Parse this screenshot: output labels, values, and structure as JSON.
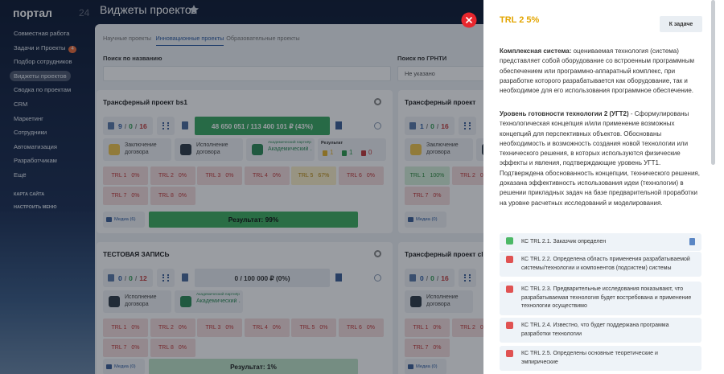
{
  "sidebar": {
    "logo": "портал",
    "logo_suffix": "24",
    "menu": [
      {
        "text": "Совместная работа"
      },
      {
        "text": "Задачи и Проекты",
        "badge": "4"
      },
      {
        "text": "Подбор сотрудников"
      },
      {
        "text": "Виджеты проектов",
        "active": true
      },
      {
        "text": "Сводка по проектам"
      },
      {
        "text": "CRM"
      },
      {
        "text": "Маркетинг"
      },
      {
        "text": "Сотрудники"
      },
      {
        "text": "Автоматизация"
      },
      {
        "text": "Разработчикам"
      },
      {
        "text": "Ещё"
      }
    ],
    "extra": [
      "КАРТА САЙТА",
      "НАСТРОИТЬ МЕНЮ"
    ]
  },
  "page": {
    "title": "Виджеты проектов",
    "tabs": [
      {
        "text": "Научные проекты"
      },
      {
        "text": "Инновационные проекты",
        "active": true
      },
      {
        "text": "Образовательные проекты"
      }
    ],
    "filters": [
      {
        "label": "Поиск по названию"
      },
      {
        "label": "Поиск по ГРНТИ",
        "value": "Не указано"
      }
    ]
  },
  "cards": [
    {
      "title": "Трансферный проект bs1",
      "counts": [
        "9",
        "/",
        "0",
        "/",
        "16"
      ],
      "budget": {
        "text": "48 650 051 / 113 400 101 ₽ (43%)",
        "color": "#3aa861"
      },
      "items": [
        {
          "text": "Заключение договора",
          "icon_color": "#f0c44c"
        },
        {
          "text": "Исполнение договора",
          "icon_color": "#2f3b48"
        },
        {
          "caption": "Академический партнёр",
          "text": "Академический ...",
          "icon_color": "#2e8b57"
        },
        {
          "caption": "Результат",
          "values": [
            "1",
            "1",
            "0"
          ]
        }
      ],
      "trl": [
        [
          {
            "label": "TRL 1",
            "value": "0%"
          },
          {
            "label": "TRL 2",
            "value": "0%"
          },
          {
            "label": "TRL 3",
            "value": "0%"
          },
          {
            "label": "TRL 4",
            "value": "0%"
          },
          {
            "label": "TRL 5",
            "value": "67%",
            "color": "#fbefc9"
          },
          {
            "label": "TRL 6",
            "value": "0%"
          }
        ],
        [
          {
            "label": "TRL 7",
            "value": "0%"
          },
          {
            "label": "TRL 8",
            "value": "0%"
          }
        ]
      ],
      "media": "Медиа (6)",
      "result": {
        "text": "Результат: 99%",
        "color": "#3fae5f"
      }
    },
    {
      "title": "Трансферный проект",
      "counts": [
        "1",
        "/",
        "0",
        "/",
        "16"
      ],
      "items": [
        {
          "text": "Заключение договора",
          "icon_color": "#f0c44c"
        },
        {
          "text": "Исполнение договора",
          "icon_color": "#2f3b48"
        }
      ],
      "trl": [
        [
          {
            "label": "TRL 1",
            "value": "100%",
            "color": "#d6efd9"
          },
          {
            "label": "TRL 2",
            "value": "0%"
          }
        ],
        [
          {
            "label": "TRL 7",
            "value": "0%"
          }
        ]
      ],
      "media": "Медиа (0)"
    },
    {
      "title": "ТЕСТОВАЯ ЗАПИСЬ",
      "counts": [
        "0",
        "/",
        "0",
        "/",
        "12"
      ],
      "budget": {
        "text": "0 / 100 000 ₽ (0%)",
        "color": "#e9edf1"
      },
      "items": [
        {
          "text": "Исполнение договора",
          "icon_color": "#2f3b48"
        },
        {
          "caption": "Академический партнёр",
          "text": "Академический ...",
          "icon_color": "#2e8b57"
        }
      ],
      "trl": [
        [
          {
            "label": "TRL 1",
            "value": "0%"
          },
          {
            "label": "TRL 2",
            "value": "0%"
          },
          {
            "label": "TRL 3",
            "value": "0%"
          },
          {
            "label": "TRL 4",
            "value": "0%"
          },
          {
            "label": "TRL 5",
            "value": "0%"
          },
          {
            "label": "TRL 6",
            "value": "0%"
          }
        ],
        [
          {
            "label": "TRL 7",
            "value": "0%"
          },
          {
            "label": "TRL 8",
            "value": "0%"
          }
        ]
      ],
      "media": "Медиа (0)",
      "result": {
        "text": "Результат: 1%",
        "color": "#bfe3c8"
      }
    },
    {
      "title": "Трансферный проект clo",
      "counts": [
        "0",
        "/",
        "0",
        "/",
        "16"
      ],
      "items": [
        {
          "text": "Исполнение договора",
          "icon_color": "#2f3b48"
        }
      ],
      "trl": [
        [
          {
            "label": "TRL 1",
            "value": "0%"
          },
          {
            "label": "TRL 2",
            "value": "0%"
          }
        ],
        [
          {
            "label": "TRL 7",
            "value": "0%"
          }
        ]
      ],
      "media": "Медиа (0)"
    }
  ],
  "panel": {
    "title": "TRL 2 5%",
    "button": "К задаче",
    "paragraphs": [
      {
        "bold": "Комплексная система:",
        "text": " оцениваемая технология (система) представляет собой оборудование со встроенным программным обеспечением или программно-аппаратный комплекс, при разработке которого разрабатывается как оборудование, так и необходимое для его использования программное обеспечение."
      },
      {
        "bold": "Уровень готовности технологии 2 (УГТ2)",
        "text": " - Сформулированы технологическая концепция и/или применение возможных концепций для перспективных объектов. Обоснованы необходимость и возможность создания новой технологии или технического решения, в которых используются физические эффекты и явления, подтверждающие уровень УГТ1. Подтверждена обоснованность концепции, технического решения, доказана эффективность использования идеи (технологии) в решении прикладных задач на базе предварительной проработки на уровне расчетных исследований и моделирования."
      }
    ],
    "checklist": [
      {
        "text": "КС TRL 2.1. Заказчик определен",
        "done": true
      },
      {
        "text": "КС TRL 2.2. Определена область применения разрабатываемой системы/технологии и компонентов (подсистем) системы",
        "done": false
      },
      {
        "text": "КС TRL 2.3. Предварительные исследования показывают, что разрабатываемая технология будет востребована и применение технологии осуществимо",
        "done": false
      },
      {
        "text": "КС TRL 2.4. Известно, что будет поддержана программа разработки технологии",
        "done": false
      },
      {
        "text": "КС TRL 2.5. Определены основные теоретические и эмпирические",
        "done": false
      }
    ]
  }
}
